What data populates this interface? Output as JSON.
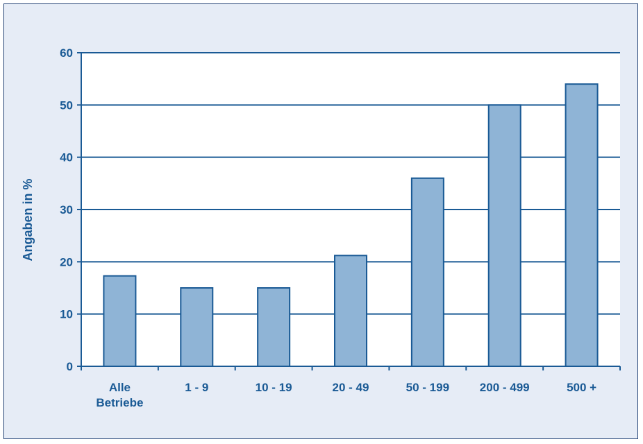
{
  "colors": {
    "background": "#e6ecf6",
    "frame_border": "#1f3f73",
    "plot_area": "#ffffff",
    "axis": "#1a5a95",
    "bar_fill": "#8fb4d6",
    "bar_stroke": "#1a5a95",
    "text": "#1a5a95"
  },
  "chart_data": {
    "type": "bar",
    "categories": [
      [
        "Alle",
        "Betriebe"
      ],
      [
        "1 - 9"
      ],
      [
        "10 - 19"
      ],
      [
        "20 - 49"
      ],
      [
        "50 - 199"
      ],
      [
        "200 - 499"
      ],
      [
        "500 +"
      ]
    ],
    "values": [
      17.3,
      15,
      15,
      21.2,
      36,
      50,
      54
    ],
    "title": "",
    "xlabel": "",
    "ylabel": "Angaben in %",
    "ylim": [
      0,
      60
    ],
    "yticks": [
      "0",
      "10",
      "20",
      "30",
      "40",
      "50",
      "60"
    ],
    "grid": true,
    "legend": "none"
  }
}
